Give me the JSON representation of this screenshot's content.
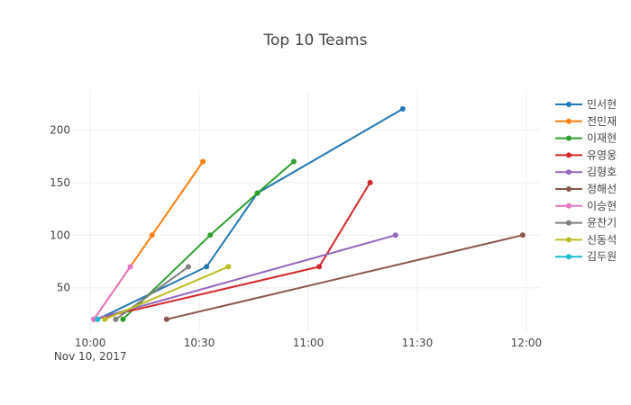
{
  "chart_data": {
    "type": "line",
    "title": "Top 10 Teams",
    "xlabel": "",
    "ylabel": "",
    "x_axis": {
      "type": "date",
      "range": [
        "2017-11-10 09:55",
        "2017-11-10 12:04"
      ],
      "ticks": [
        {
          "value": "2017-11-10 10:00",
          "label": "10:00",
          "sublabel": "Nov 10, 2017"
        },
        {
          "value": "2017-11-10 10:30",
          "label": "10:30"
        },
        {
          "value": "2017-11-10 11:00",
          "label": "11:00"
        },
        {
          "value": "2017-11-10 11:30",
          "label": "11:30"
        },
        {
          "value": "2017-11-10 12:00",
          "label": "12:00"
        }
      ]
    },
    "ylim": [
      7,
      238
    ],
    "y_ticks": [
      50,
      100,
      150,
      200
    ],
    "grid": true,
    "legend_position": "right",
    "series": [
      {
        "name": "민서현",
        "color": "#1f77b4",
        "points": [
          {
            "x": "2017-11-10 10:02",
            "y": 20
          },
          {
            "x": "2017-11-10 10:32",
            "y": 70
          },
          {
            "x": "2017-11-10 10:46",
            "y": 140
          },
          {
            "x": "2017-11-10 11:26",
            "y": 220
          }
        ]
      },
      {
        "name": "전민재",
        "color": "#ff7f0e",
        "points": [
          {
            "x": "2017-11-10 10:01",
            "y": 20
          },
          {
            "x": "2017-11-10 10:17",
            "y": 100
          },
          {
            "x": "2017-11-10 10:31",
            "y": 170
          }
        ]
      },
      {
        "name": "이재현",
        "color": "#2ca02c",
        "points": [
          {
            "x": "2017-11-10 10:09",
            "y": 20
          },
          {
            "x": "2017-11-10 10:33",
            "y": 100
          },
          {
            "x": "2017-11-10 10:46",
            "y": 140
          },
          {
            "x": "2017-11-10 10:56",
            "y": 170
          }
        ]
      },
      {
        "name": "유영웅",
        "color": "#d62728",
        "points": [
          {
            "x": "2017-11-10 10:01",
            "y": 20
          },
          {
            "x": "2017-11-10 11:03",
            "y": 70
          },
          {
            "x": "2017-11-10 11:17",
            "y": 150
          }
        ]
      },
      {
        "name": "김형호",
        "color": "#9467bd",
        "points": [
          {
            "x": "2017-11-10 10:01",
            "y": 20
          },
          {
            "x": "2017-11-10 11:24",
            "y": 100
          }
        ]
      },
      {
        "name": "정해선",
        "color": "#8c564b",
        "points": [
          {
            "x": "2017-11-10 10:21",
            "y": 20
          },
          {
            "x": "2017-11-10 11:59",
            "y": 100
          }
        ]
      },
      {
        "name": "이승현",
        "color": "#e377c2",
        "points": [
          {
            "x": "2017-11-10 10:01",
            "y": 20
          },
          {
            "x": "2017-11-10 10:11",
            "y": 70
          }
        ]
      },
      {
        "name": "윤찬기",
        "color": "#7f7f7f",
        "points": [
          {
            "x": "2017-11-10 10:07",
            "y": 20
          },
          {
            "x": "2017-11-10 10:27",
            "y": 70
          }
        ]
      },
      {
        "name": "신동석",
        "color": "#bcbd22",
        "points": [
          {
            "x": "2017-11-10 10:04",
            "y": 20
          },
          {
            "x": "2017-11-10 10:38",
            "y": 70
          }
        ]
      },
      {
        "name": "김두원",
        "color": "#17becf",
        "points": [
          {
            "x": "2017-11-10 10:02",
            "y": 20
          }
        ]
      }
    ]
  }
}
